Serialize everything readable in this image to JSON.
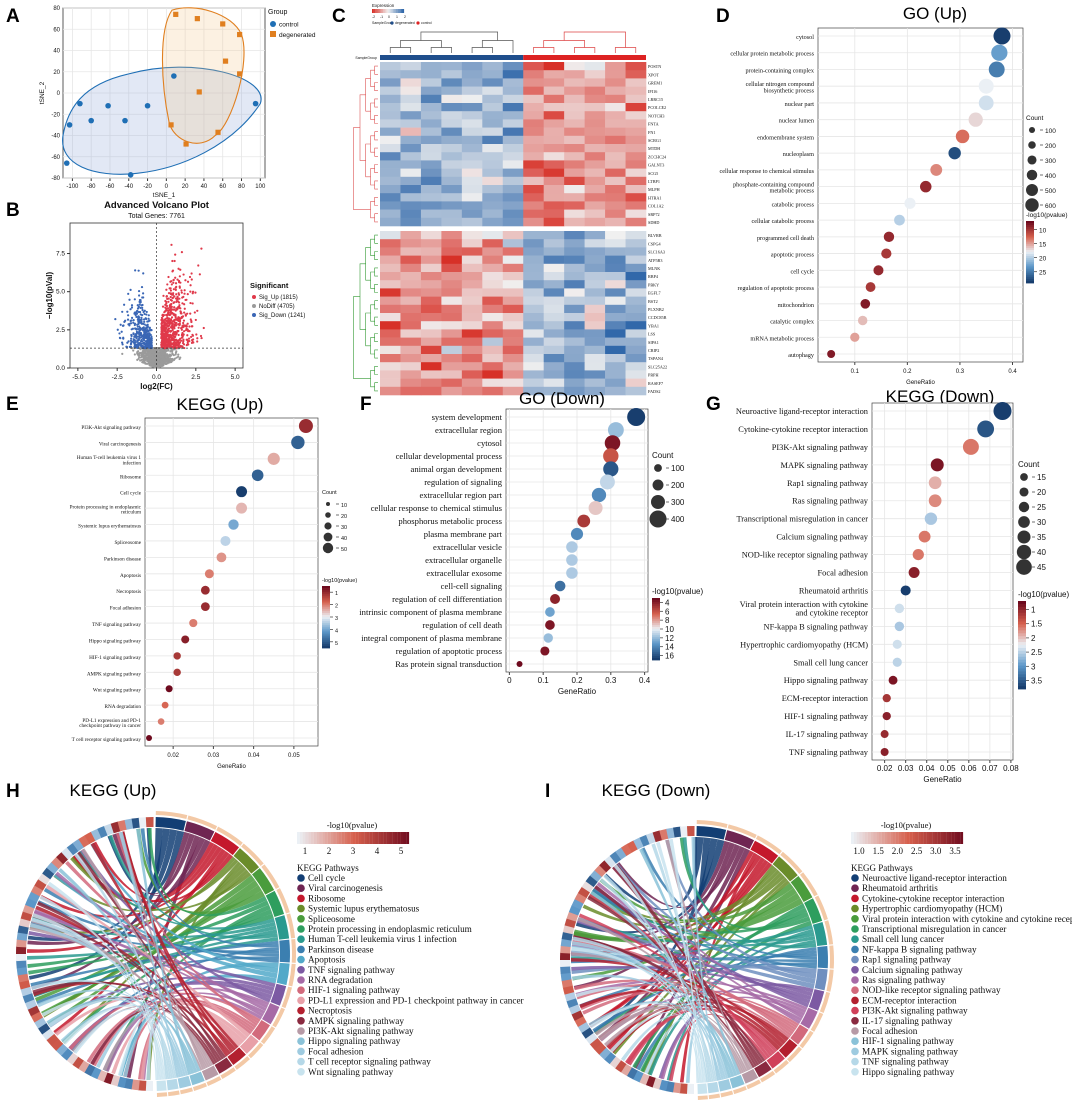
{
  "panels": {
    "A": {
      "label": "A"
    },
    "B": {
      "label": "B"
    },
    "C": {
      "label": "C"
    },
    "D": {
      "label": "D"
    },
    "E": {
      "label": "E"
    },
    "F": {
      "label": "F"
    },
    "G": {
      "label": "G"
    },
    "H": {
      "label": "H"
    },
    "I": {
      "label": "I"
    }
  },
  "chart_data": [
    {
      "id": "A",
      "type": "scatter",
      "xlabel": "tSNE_1",
      "ylabel": "tSNE_2",
      "xlim": [
        -110,
        105
      ],
      "ylim": [
        -80,
        80
      ],
      "xticks": [
        -100,
        -80,
        -60,
        -40,
        -20,
        0,
        20,
        40,
        60,
        80,
        100
      ],
      "yticks": [
        -80,
        -60,
        -40,
        -20,
        0,
        20,
        40,
        60,
        80
      ],
      "legend_title": "Group",
      "series": [
        {
          "name": "control",
          "color": "#1f6fb5",
          "points": [
            [
              -92,
              -10
            ],
            [
              -80,
              -26
            ],
            [
              -62,
              -12
            ],
            [
              -103,
              -30
            ],
            [
              -106,
              -66
            ],
            [
              -44,
              -26
            ],
            [
              -38,
              -77
            ],
            [
              -20,
              -12
            ],
            [
              8,
              16
            ],
            [
              95,
              -10
            ]
          ]
        },
        {
          "name": "degenerated",
          "color": "#e07f1f",
          "points": [
            [
              10,
              74
            ],
            [
              33,
              70
            ],
            [
              60,
              65
            ],
            [
              78,
              55
            ],
            [
              63,
              30
            ],
            [
              78,
              18
            ],
            [
              35,
              1
            ],
            [
              55,
              -37
            ],
            [
              21,
              -48
            ],
            [
              5,
              -30
            ]
          ]
        }
      ]
    },
    {
      "id": "B",
      "type": "scatter",
      "title": "Advanced Volcano Plot",
      "subtitle": "Total Genes: 7761",
      "xlabel": "log2(FC)",
      "ylabel": "−log10(pVal)",
      "xlim": [
        -5.5,
        5.5
      ],
      "ylim": [
        0,
        9.5
      ],
      "xticks": [
        -5.0,
        -2.5,
        0.0,
        2.5,
        5.0
      ],
      "yticks": [
        0.0,
        2.5,
        5.0,
        7.5
      ],
      "legend_title": "Significant",
      "series": [
        {
          "name": "Sig_Up (1815)",
          "color": "#e0394a"
        },
        {
          "name": "NoDiff (4705)",
          "color": "#9a9a9a"
        },
        {
          "name": "Sig_Down (1241)",
          "color": "#3a66b5"
        }
      ]
    },
    {
      "id": "C",
      "type": "heatmap",
      "legend_title": "Expression",
      "legend_ticks": [
        "-2",
        "-1",
        "0",
        "1",
        "2"
      ],
      "annotation_title": "SampleGroup",
      "groups": [
        "degenerated",
        "control"
      ],
      "columns": 13,
      "left_columns": 7,
      "genes_up": [
        "POSTN",
        "XPOT",
        "GREM1",
        "IFI16",
        "LRRC15",
        "PCOLCE2",
        "NOTCH3",
        "FNTA",
        "FN1",
        "SCRG1",
        "MTDH",
        "ZCCHC24",
        "GALNT3",
        "SCG5",
        "LTBP1",
        "MLPH",
        "HTRA1",
        "COL1A2",
        "SRP72",
        "SDHD"
      ],
      "genes_down": [
        "BLVRB",
        "CSPG4",
        "SLC16A3",
        "ATP5B3",
        "MLNK",
        "RBP4",
        "PBKY",
        "EGFL7",
        "BST2",
        "PLXNB2",
        "CCDC85B",
        "YBA1",
        "LSS",
        "SIPA1",
        "CRIP2",
        "TSPAN4",
        "SLC25A22",
        "PRPH",
        "RASEF7",
        "FADS2"
      ]
    },
    {
      "id": "D",
      "type": "scatter",
      "title": "GO (Up)",
      "xlabel": "GeneRatio",
      "xlim": [
        0.03,
        0.42
      ],
      "xticks": [
        0.1,
        0.2,
        0.3,
        0.4
      ],
      "size_legend": {
        "title": "Count",
        "values": [
          100,
          200,
          300,
          400,
          500,
          600
        ]
      },
      "color_legend": {
        "title": "-log10(pvalue)",
        "ticks": [
          10,
          15,
          20,
          25
        ],
        "range": [
          7,
          29
        ]
      },
      "terms": [
        "cytosol",
        "cellular protein metabolic process",
        "protein-containing complex",
        "cellular nitrogen compound biosynthetic process",
        "nuclear part",
        "nuclear lumen",
        "endomembrane system",
        "nucleoplasm",
        "cellular response to chemical stimulus",
        "phosphate-containing compound metabolic process",
        "catabolic process",
        "cellular catabolic process",
        "programmed cell death",
        "apoptotic process",
        "cell cycle",
        "regulation of apoptotic process",
        "mitochondrion",
        "catalytic complex",
        "mRNA metabolic process",
        "autophagy"
      ],
      "x": [
        0.38,
        0.375,
        0.37,
        0.35,
        0.35,
        0.33,
        0.305,
        0.29,
        0.255,
        0.235,
        0.205,
        0.185,
        0.165,
        0.16,
        0.145,
        0.13,
        0.12,
        0.115,
        0.1,
        0.055
      ],
      "pval": [
        29,
        23,
        25,
        18,
        19,
        17,
        13,
        28,
        14,
        9,
        18,
        20,
        9,
        10,
        9,
        10,
        8,
        16,
        15,
        8
      ],
      "count": [
        610,
        570,
        550,
        500,
        490,
        460,
        420,
        360,
        330,
        310,
        290,
        270,
        250,
        240,
        230,
        220,
        210,
        200,
        190,
        120
      ]
    },
    {
      "id": "E",
      "type": "scatter",
      "title": "KEGG (Up)",
      "xlabel": "GeneRatio",
      "xlim": [
        0.013,
        0.056
      ],
      "xticks": [
        0.02,
        0.03,
        0.04,
        0.05
      ],
      "size_legend": {
        "title": "Count",
        "values": [
          10,
          20,
          30,
          40,
          50
        ]
      },
      "color_legend": {
        "title": "-log10(pvalue)",
        "ticks": [
          1,
          2,
          3,
          4,
          5
        ],
        "range": [
          0.5,
          5.5
        ]
      },
      "terms": [
        "PI3K-Akt signaling pathway",
        "Viral carcinogenesis",
        "Human T-cell leukemia virus 1 infection",
        "Ribosome",
        "Cell cycle",
        "Protein processing in endoplasmic reticulum",
        "Systemic lupus erythematosus",
        "Spliceosome",
        "Parkinson disease",
        "Apoptosis",
        "Necroptosis",
        "Focal adhesion",
        "TNF signaling pathway",
        "Hippo signaling pathway",
        "HIF-1 signaling pathway",
        "AMPK signaling pathway",
        "Wnt signaling pathway",
        "RNA degradation",
        "PD-L1 expression and PD-1 checkpoint pathway in cancer",
        "T cell receptor signaling pathway"
      ],
      "x": [
        0.053,
        0.051,
        0.045,
        0.041,
        0.037,
        0.037,
        0.035,
        0.033,
        0.032,
        0.029,
        0.028,
        0.028,
        0.025,
        0.023,
        0.021,
        0.021,
        0.019,
        0.018,
        0.017,
        0.014
      ],
      "pval": [
        1,
        5,
        2.4,
        5,
        5.5,
        2.5,
        4,
        3.4,
        2.2,
        2,
        1,
        1,
        2,
        0.8,
        1.2,
        1.2,
        0.5,
        1.8,
        2,
        0.5
      ],
      "count": [
        55,
        52,
        46,
        43,
        40,
        40,
        37,
        35,
        34,
        30,
        29,
        29,
        26,
        25,
        22,
        22,
        20,
        19,
        18,
        15
      ]
    },
    {
      "id": "F",
      "type": "scatter",
      "title": "GO (Down)",
      "xlabel": "GeneRatio",
      "xlim": [
        -0.01,
        0.41
      ],
      "xticks": [
        0.0,
        0.1,
        0.2,
        0.3,
        0.4
      ],
      "size_legend": {
        "title": "Count",
        "values": [
          100,
          200,
          300,
          400
        ]
      },
      "color_legend": {
        "title": "-log10(pvalue)",
        "ticks": [
          4,
          6,
          8,
          10,
          12,
          14,
          16
        ],
        "range": [
          3,
          17
        ]
      },
      "terms": [
        "system development",
        "extracellular region",
        "cytosol",
        "cellular developmental process",
        "animal organ development",
        "regulation of signaling",
        "extracellular region part",
        "cellular response to chemical stimulus",
        "phosphorus metabolic process",
        "plasma membrane part",
        "extracellular vesicle",
        "extracellular organelle",
        "extracellular exosome",
        "cell-cell signaling",
        "regulation of cell differentiation",
        "intrinsic component of plasma membrane",
        "regulation of cell death",
        "integral component of plasma membrane",
        "regulation of apoptotic process",
        "Ras protein signal transduction"
      ],
      "x": [
        0.375,
        0.315,
        0.305,
        0.3,
        0.3,
        0.29,
        0.265,
        0.255,
        0.22,
        0.2,
        0.185,
        0.185,
        0.185,
        0.15,
        0.135,
        0.12,
        0.12,
        0.115,
        0.105,
        0.03
      ],
      "pval": [
        17,
        12,
        3.5,
        6,
        16,
        11,
        14,
        9,
        5,
        14,
        11.5,
        11.5,
        11.5,
        15,
        4,
        13,
        3.5,
        12,
        3.5,
        3
      ],
      "count": [
        430,
        360,
        350,
        345,
        340,
        330,
        310,
        300,
        260,
        240,
        220,
        220,
        220,
        190,
        170,
        160,
        160,
        150,
        140,
        40
      ]
    },
    {
      "id": "G",
      "type": "scatter",
      "title": "KEGG (Down)",
      "xlabel": "GeneRatio",
      "xlim": [
        0.014,
        0.081
      ],
      "xticks": [
        0.02,
        0.03,
        0.04,
        0.05,
        0.06,
        0.07,
        0.08
      ],
      "size_legend": {
        "title": "Count",
        "values": [
          15,
          20,
          25,
          30,
          35,
          40,
          45
        ]
      },
      "color_legend": {
        "title": "-log10(pvalue)",
        "ticks": [
          1.0,
          1.5,
          2.0,
          2.5,
          3.0,
          3.5
        ],
        "range": [
          0.7,
          3.8
        ]
      },
      "terms": [
        "Neuroactive ligand-receptor interaction",
        "Cytokine-cytokine receptor interaction",
        "PI3K-Akt signaling pathway",
        "MAPK signaling pathway",
        "Rap1 signaling pathway",
        "Ras signaling pathway",
        "Transcriptional misregulation in cancer",
        "Calcium signaling pathway",
        "NOD-like receptor signaling pathway",
        "Focal adhesion",
        "Rheumatoid arthritis",
        "Viral protein interaction with cytokine and cytokine receptor",
        "NF-kappa B signaling pathway",
        "Hypertrophic cardiomyopathy (HCM)",
        "Small cell lung cancer",
        "Hippo signaling pathway",
        "ECM-receptor interaction",
        "HIF-1 signaling pathway",
        "IL-17 signaling pathway",
        "TNF signaling pathway"
      ],
      "x": [
        0.076,
        0.068,
        0.061,
        0.045,
        0.044,
        0.044,
        0.042,
        0.039,
        0.036,
        0.034,
        0.03,
        0.027,
        0.027,
        0.026,
        0.026,
        0.024,
        0.021,
        0.021,
        0.02,
        0.02
      ],
      "pval": [
        3.8,
        3.6,
        1.6,
        0.8,
        1.9,
        1.7,
        2.6,
        1.6,
        1.6,
        0.9,
        3.8,
        2.4,
        2.6,
        2.4,
        2.5,
        0.8,
        1.1,
        0.9,
        1.0,
        0.9
      ],
      "count": [
        47,
        43,
        40,
        30,
        29,
        29,
        28,
        26,
        24,
        23,
        20,
        18,
        18,
        17,
        17,
        16,
        14,
        14,
        13,
        13
      ]
    },
    {
      "id": "H",
      "type": "chord",
      "title": "KEGG (Up)",
      "color_legend": {
        "title": "-log10(pvalue)",
        "ticks": [
          "1",
          "2",
          "3",
          "4",
          "5"
        ]
      },
      "legend_title": "KEGG Pathways",
      "pathways": [
        {
          "name": "Cell cycle",
          "color": "#123e74"
        },
        {
          "name": "Viral carcinogenesis",
          "color": "#6f2552"
        },
        {
          "name": "Ribosome",
          "color": "#c4182c"
        },
        {
          "name": "Systemic lupus erythematosus",
          "color": "#6a8c2a"
        },
        {
          "name": "Spliceosome",
          "color": "#4a9c3c"
        },
        {
          "name": "Protein processing in endoplasmic reticulum",
          "color": "#2e9e5e"
        },
        {
          "name": "Human T-cell leukemia virus 1 infection",
          "color": "#2a9a8f"
        },
        {
          "name": "Parkinson disease",
          "color": "#3b7fb0"
        },
        {
          "name": "Apoptosis",
          "color": "#52a9c9"
        },
        {
          "name": "TNF signaling pathway",
          "color": "#7c5aa3"
        },
        {
          "name": "RNA degradation",
          "color": "#a66aa6"
        },
        {
          "name": "HIF-1 signaling pathway",
          "color": "#d26a7c"
        },
        {
          "name": "PD-L1 expression and PD-1 checkpoint pathway in cancer",
          "color": "#e8a0a8"
        },
        {
          "name": "Necroptosis",
          "color": "#b3202f"
        },
        {
          "name": "AMPK signaling pathway",
          "color": "#8a2a40"
        },
        {
          "name": "PI3K-Akt signaling pathway",
          "color": "#b79aa6"
        },
        {
          "name": "Hippo signaling pathway",
          "color": "#8ac2d8"
        },
        {
          "name": "Focal adhesion",
          "color": "#9ecbe0"
        },
        {
          "name": "T cell receptor signaling pathway",
          "color": "#b5d8e8"
        },
        {
          "name": "Wnt signaling pathway",
          "color": "#c8e3ee"
        }
      ]
    },
    {
      "id": "I",
      "type": "chord",
      "title": "KEGG (Down)",
      "color_legend": {
        "title": "-log10(pvalue)",
        "ticks": [
          "1.0",
          "1.5",
          "2.0",
          "2.5",
          "3.0",
          "3.5"
        ]
      },
      "legend_title": "KEGG Pathways",
      "pathways": [
        {
          "name": "Neuroactive ligand-receptor interaction",
          "color": "#123e74"
        },
        {
          "name": "Rheumatoid arthritis",
          "color": "#6f2552"
        },
        {
          "name": "Cytokine-cytokine receptor interaction",
          "color": "#c4182c"
        },
        {
          "name": "Hypertrophic cardiomyopathy (HCM)",
          "color": "#6a8c2a"
        },
        {
          "name": "Viral protein interaction with cytokine and cytokine recep",
          "color": "#4a9c3c"
        },
        {
          "name": "Transcriptional misregulation in cancer",
          "color": "#2e9e5e"
        },
        {
          "name": "Small cell lung cancer",
          "color": "#2a9a8f"
        },
        {
          "name": "NF-kappa B signaling pathway",
          "color": "#3b7fb0"
        },
        {
          "name": "Rap1 signaling pathway",
          "color": "#6f8fbf"
        },
        {
          "name": "Calcium signaling pathway",
          "color": "#7c5aa3"
        },
        {
          "name": "Ras signaling pathway",
          "color": "#a66aa6"
        },
        {
          "name": "NOD-like receptor signaling pathway",
          "color": "#d26a7c"
        },
        {
          "name": "ECM-receptor interaction",
          "color": "#b3202f"
        },
        {
          "name": "PI3K-Akt signaling pathway",
          "color": "#d0405a"
        },
        {
          "name": "IL-17 signaling pathway",
          "color": "#8a2a40"
        },
        {
          "name": "Focal adhesion",
          "color": "#b79aa6"
        },
        {
          "name": "HIF-1 signaling pathway",
          "color": "#8ac2d8"
        },
        {
          "name": "MAPK signaling pathway",
          "color": "#9ecbe0"
        },
        {
          "name": "TNF signaling pathway",
          "color": "#b5d8e8"
        },
        {
          "name": "Hippo signaling pathway",
          "color": "#c8e3ee"
        }
      ]
    }
  ]
}
